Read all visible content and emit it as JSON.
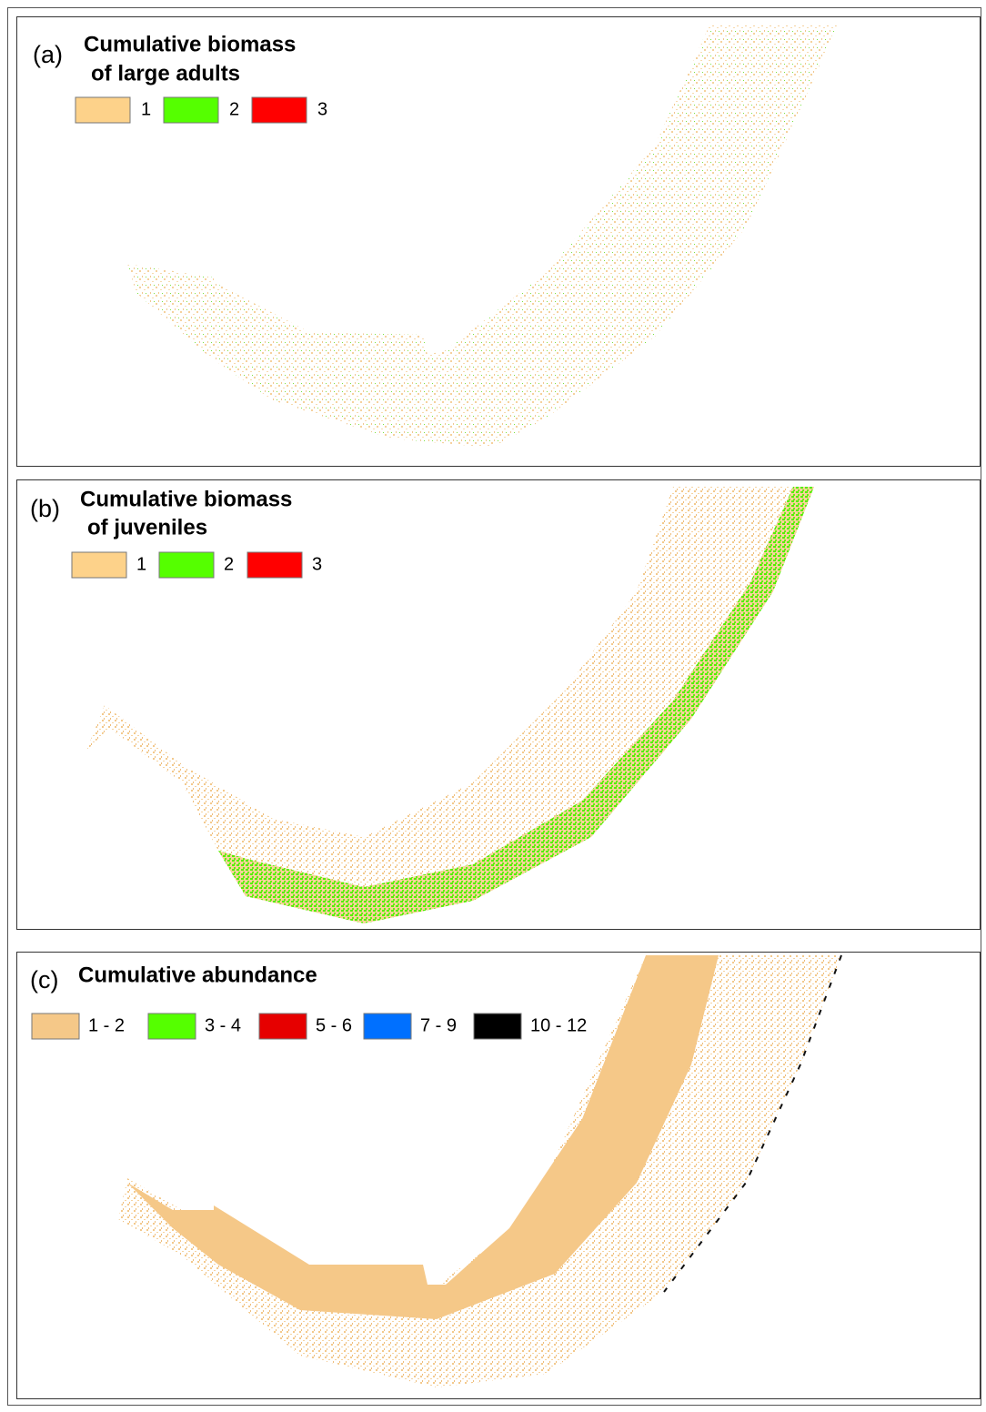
{
  "panels": [
    {
      "label": "(a)",
      "title_lines": [
        "Cumulative biomass",
        "of large adults"
      ],
      "legend": [
        {
          "label": "1",
          "color": "#fdd28a"
        },
        {
          "label": "2",
          "color": "#55ff00"
        },
        {
          "label": "3",
          "color": "#ff0000"
        }
      ]
    },
    {
      "label": "(b)",
      "title_lines": [
        "Cumulative biomass",
        "of juveniles"
      ],
      "legend": [
        {
          "label": "1",
          "color": "#fdd28a"
        },
        {
          "label": "2",
          "color": "#55ff00"
        },
        {
          "label": "3",
          "color": "#ff0000"
        }
      ]
    },
    {
      "label": "(c)",
      "title_lines": [
        "Cumulative abundance"
      ],
      "legend": [
        {
          "label": "1 - 2",
          "color": "#f5c888"
        },
        {
          "label": "3 - 4",
          "color": "#55ff00"
        },
        {
          "label": "5 - 6",
          "color": "#e60000"
        },
        {
          "label": "7 - 9",
          "color": "#0070ff"
        },
        {
          "label": "10 - 12",
          "color": "#000000"
        }
      ]
    }
  ]
}
